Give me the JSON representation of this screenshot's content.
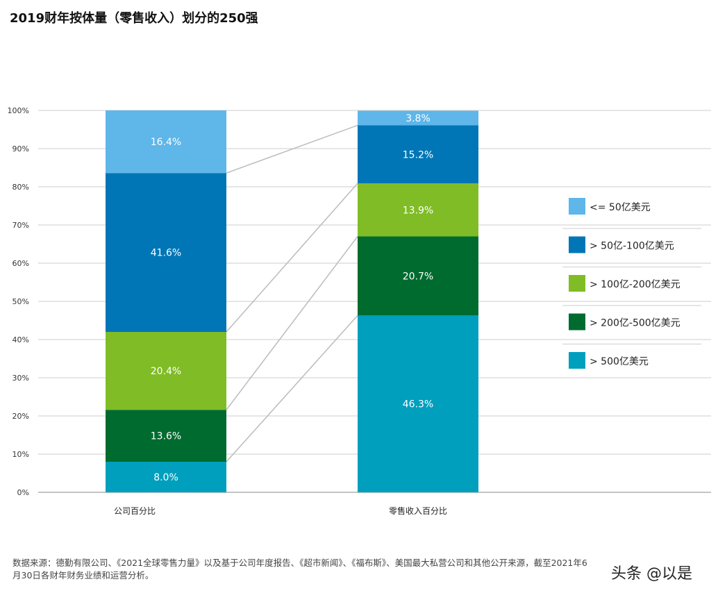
{
  "chart_data": {
    "type": "bar",
    "stacked": true,
    "title": "2019财年按体量（零售收入）划分的250强",
    "categories": [
      "公司百分比",
      "零售收入百分比"
    ],
    "series": [
      {
        "name": "> 500亿美元",
        "color": "#009fbe",
        "values": [
          8.0,
          46.3
        ]
      },
      {
        "name": "> 200亿-500亿美元",
        "color": "#006b2f",
        "values": [
          13.6,
          20.7
        ]
      },
      {
        "name": "> 100亿-200亿美元",
        "color": "#80bc25",
        "values": [
          20.4,
          13.9
        ]
      },
      {
        "name": "> 50亿-100亿美元",
        "color": "#0076b6",
        "values": [
          41.6,
          15.2
        ]
      },
      {
        "name": "<= 50亿美元",
        "color": "#5eb6e9",
        "values": [
          16.4,
          3.8
        ]
      }
    ],
    "data_labels": [
      [
        "8.0%",
        "13.6%",
        "20.4%",
        "41.6%",
        "16.4%"
      ],
      [
        "46.3%",
        "20.7%",
        "13.9%",
        "15.2%",
        "3.8%"
      ]
    ],
    "yticks": [
      "0%",
      "10%",
      "20%",
      "30%",
      "40%",
      "50%",
      "60%",
      "70%",
      "80%",
      "90%",
      "100%"
    ],
    "ylim": [
      0,
      100
    ],
    "grid": true,
    "legend_placement": "right"
  },
  "footer": "数据来源：德勤有限公司、《2021全球零售力量》以及基于公司年度报告、《超市新闻》、《福布斯》、美国最大私营公司和其他公开来源，截至2021年6月30日各财年财务业绩和运营分析。",
  "watermark": "头条 @以是"
}
